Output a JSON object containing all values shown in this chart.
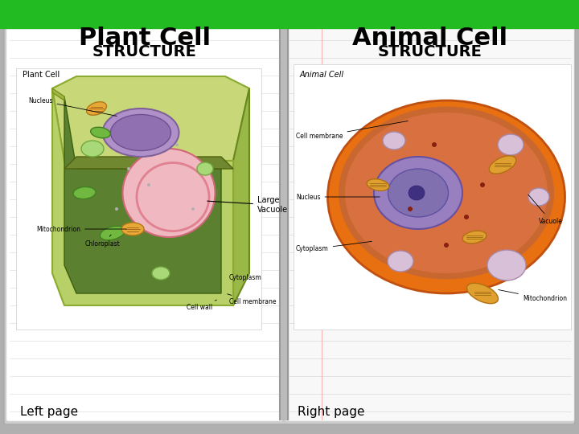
{
  "title_left": "Plant Cell",
  "subtitle_left": "STRUCTURE",
  "title_right": "Animal Cell",
  "subtitle_right": "STRUCTURE",
  "label_left_page": "Left page",
  "label_right_page": "Right page",
  "label_plant_cell": "Plant Cell",
  "label_animal_cell": "Animal Cell",
  "label_large_vacuole": "Large\nVacuole",
  "header_color": "#22bb22",
  "bg_color": "#b0b0b0",
  "left_page_color": "#ffffff",
  "right_page_color": "#f5f5f5",
  "notebook_line_color": "#999999",
  "title_fontsize": 22,
  "subtitle_fontsize": 14,
  "page_label_fontsize": 11
}
